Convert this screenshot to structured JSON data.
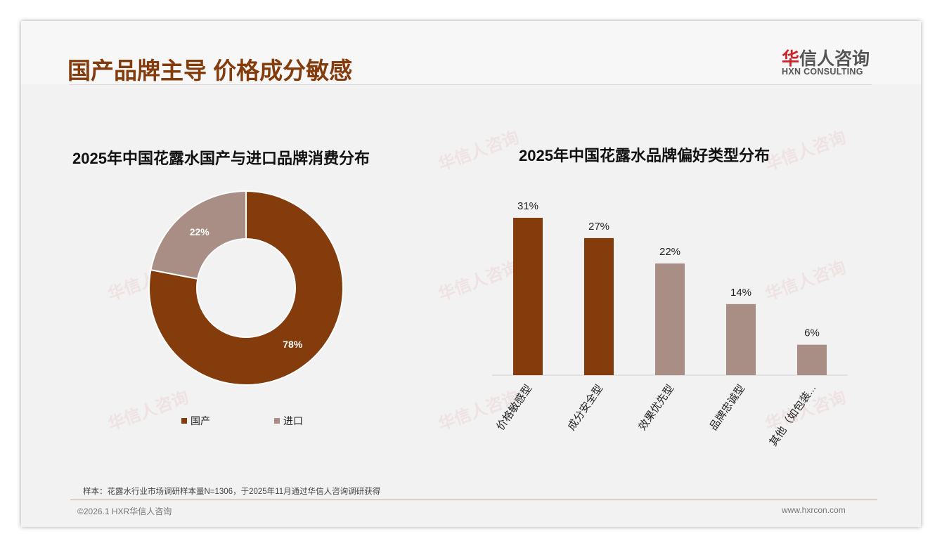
{
  "header": {
    "title": "国产品牌主导 价格成分敏感",
    "logo_cn_red": "华",
    "logo_cn": "信人咨询",
    "logo_en": "HXN CONSULTING"
  },
  "chart_data": [
    {
      "type": "pie",
      "title": "2025年中国花露水国产与进口品牌消费分布",
      "categories": [
        "国产",
        "进口"
      ],
      "values": [
        78,
        22
      ],
      "labels": [
        "78%",
        "22%"
      ],
      "colors": [
        "#843C0C",
        "#A88E84"
      ],
      "legend": "bottom"
    },
    {
      "type": "bar",
      "title": "2025年中国花露水品牌偏好类型分布",
      "categories": [
        "价格敏感型",
        "成分安全型",
        "效果优先型",
        "品牌忠诚型",
        "其他（如包装..."
      ],
      "values": [
        31,
        27,
        22,
        14,
        6
      ],
      "labels": [
        "31%",
        "27%",
        "22%",
        "14%",
        "6%"
      ],
      "colors": [
        "#843C0C",
        "#843C0C",
        "#A88E84",
        "#A88E84",
        "#A88E84"
      ],
      "ylim": [
        0,
        31
      ]
    }
  ],
  "footer": {
    "note": "样本：花露水行业市场调研样本量N=1306，于2025年11月通过华信人咨询调研获得",
    "copyright": "©2026.1 HXR华信人咨询",
    "website": "www.hxrcon.com"
  }
}
